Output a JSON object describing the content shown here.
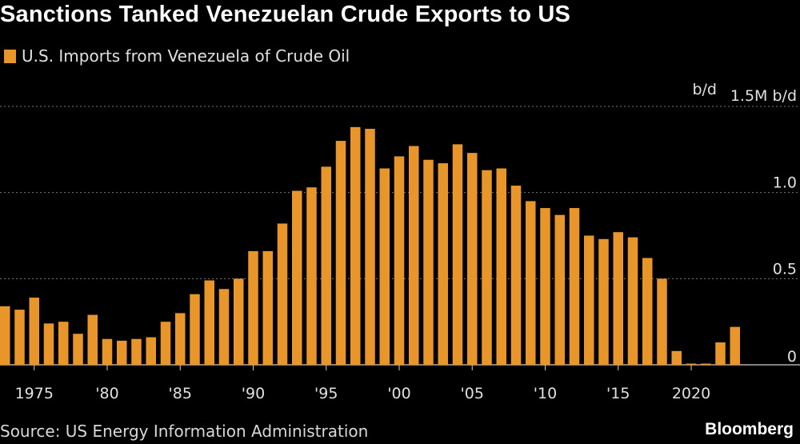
{
  "title": "Sanctions Tanked Venezuelan Crude Exports to US",
  "source": "Source: US Energy Information Administration",
  "brand": "Bloomberg",
  "colors": {
    "background": "#000000",
    "bar": "#e8952a",
    "grid": "#7a7a7a",
    "text": "#e0e0e0"
  },
  "chart_data": {
    "type": "bar",
    "legend": [
      "U.S. Imports from Venezuela of Crude Oil"
    ],
    "y_unit": "b/d",
    "y_tick_labels": [
      "0",
      "0.5",
      "1.0",
      "1.5M b/d"
    ],
    "y_ticks": [
      0,
      0.5,
      1.0,
      1.5
    ],
    "ylim": [
      0,
      1.5
    ],
    "grid": true,
    "x_tick_labels": [
      {
        "year": 1975,
        "label": "1975"
      },
      {
        "year": 1980,
        "label": "'80"
      },
      {
        "year": 1985,
        "label": "'85"
      },
      {
        "year": 1990,
        "label": "'90"
      },
      {
        "year": 1995,
        "label": "'95"
      },
      {
        "year": 2000,
        "label": "'00"
      },
      {
        "year": 2005,
        "label": "'05"
      },
      {
        "year": 2010,
        "label": "'10"
      },
      {
        "year": 2015,
        "label": "'15"
      },
      {
        "year": 2020,
        "label": "2020"
      }
    ],
    "series": [
      {
        "name": "U.S. Imports from Venezuela of Crude Oil",
        "x": [
          1973,
          1974,
          1975,
          1976,
          1977,
          1978,
          1979,
          1980,
          1981,
          1982,
          1983,
          1984,
          1985,
          1986,
          1987,
          1988,
          1989,
          1990,
          1991,
          1992,
          1993,
          1994,
          1995,
          1996,
          1997,
          1998,
          1999,
          2000,
          2001,
          2002,
          2003,
          2004,
          2005,
          2006,
          2007,
          2008,
          2009,
          2010,
          2011,
          2012,
          2013,
          2014,
          2015,
          2016,
          2017,
          2018,
          2019,
          2020,
          2021,
          2022,
          2023
        ],
        "values": [
          0.34,
          0.32,
          0.39,
          0.24,
          0.25,
          0.18,
          0.29,
          0.15,
          0.14,
          0.15,
          0.16,
          0.25,
          0.3,
          0.41,
          0.49,
          0.44,
          0.5,
          0.66,
          0.66,
          0.82,
          1.01,
          1.03,
          1.15,
          1.3,
          1.38,
          1.37,
          1.14,
          1.21,
          1.27,
          1.19,
          1.17,
          1.28,
          1.23,
          1.13,
          1.14,
          1.04,
          0.95,
          0.91,
          0.87,
          0.91,
          0.75,
          0.73,
          0.77,
          0.74,
          0.62,
          0.5,
          0.08,
          0.005,
          0.005,
          0.13,
          0.22
        ]
      }
    ]
  }
}
